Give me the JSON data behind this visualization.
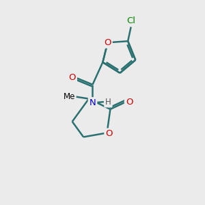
{
  "bg_color": "#ebebeb",
  "bond_color": "#2a7070",
  "bond_width": 1.8,
  "atom_colors": {
    "O": "#cc0000",
    "N": "#0000cc",
    "Cl": "#008800",
    "C": "#000000",
    "H": "#555555"
  },
  "font_size": 9.5,
  "fig_size": [
    3.0,
    3.0
  ],
  "dpi": 100
}
